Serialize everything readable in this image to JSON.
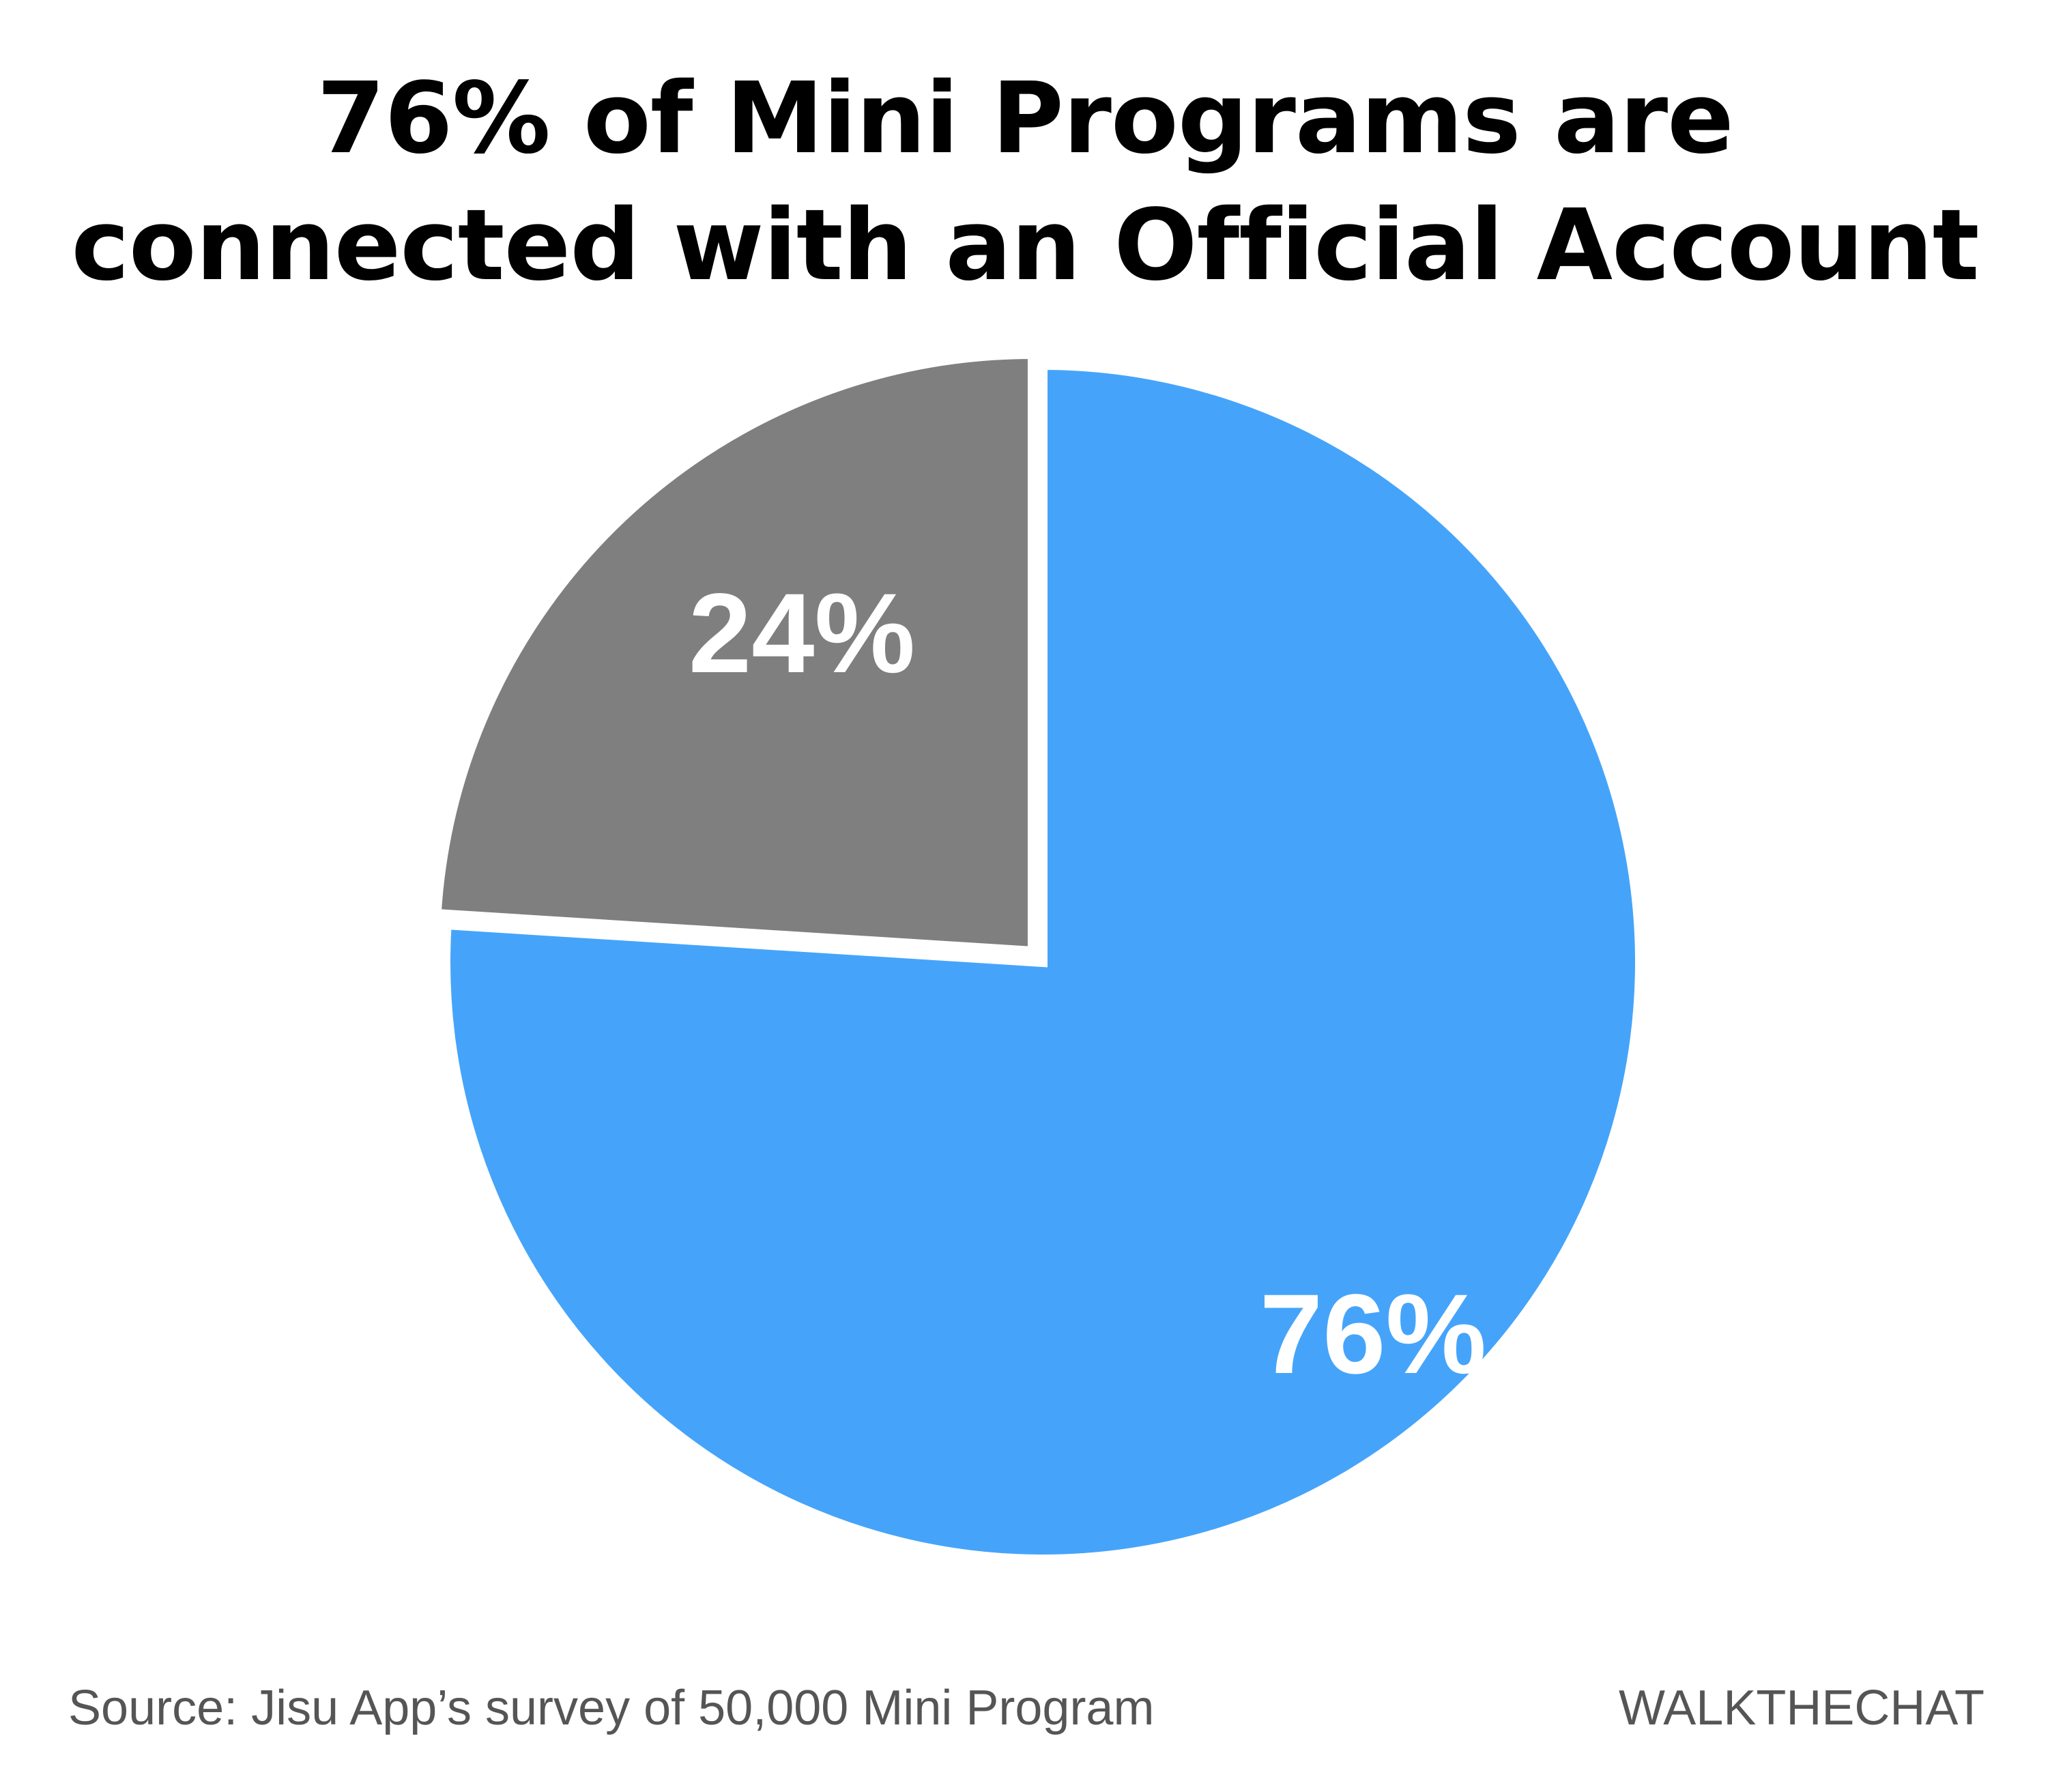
{
  "chart_data": {
    "type": "pie",
    "title_lines": [
      "76% of Mini Programs are",
      "connected with an Official Account"
    ],
    "slices": [
      {
        "label": "76%",
        "value": 76,
        "color": "#45a4fa"
      },
      {
        "label": "24%",
        "value": 24,
        "color": "#7f7f7f"
      }
    ]
  },
  "footer": {
    "source": "Source: Jisu App’s survey of 50,000 Mini Program",
    "brand": "WALKTHECHAT"
  }
}
